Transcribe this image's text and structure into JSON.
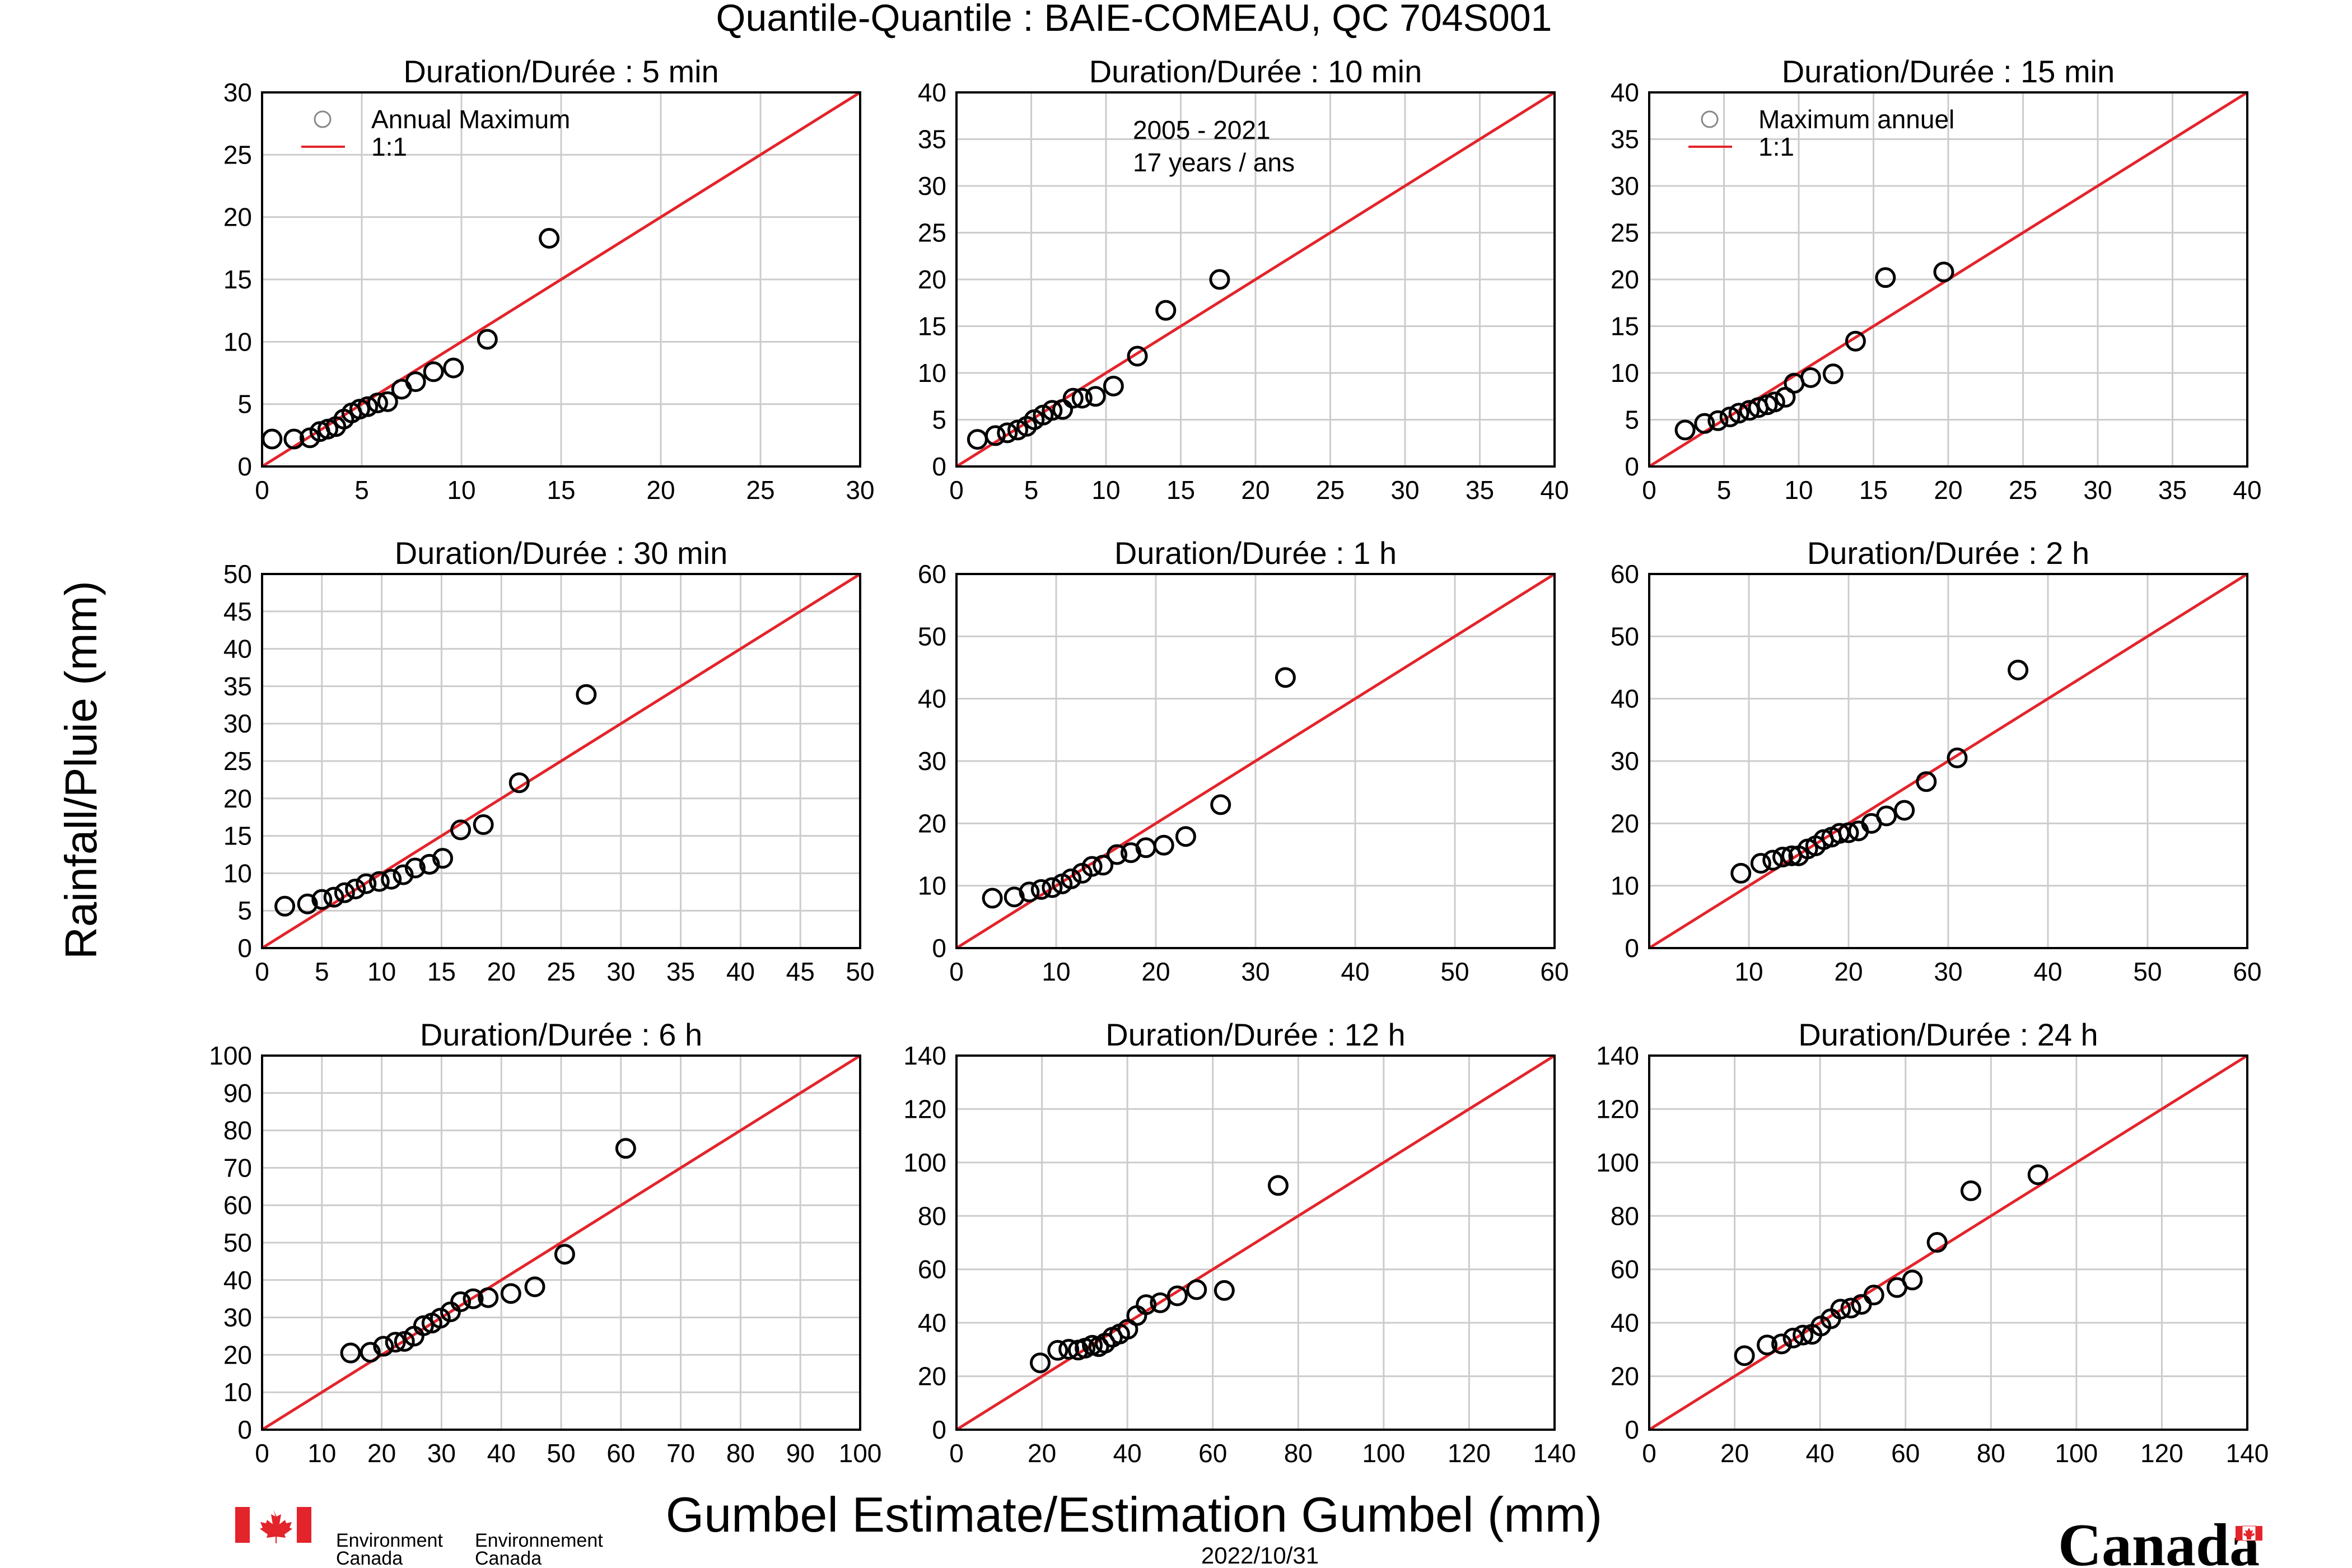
{
  "figure": {
    "title": "Quantile-Quantile : BAIE-COMEAU, QC  704S001",
    "ylabel": "Rainfall/Pluie (mm)",
    "xlabel": "Gumbel Estimate/Estimation Gumbel (mm)",
    "date": "2022/10/31"
  },
  "branding": {
    "agency_en_1": "Environment",
    "agency_en_2": "Canada",
    "agency_fr_1": "Environnement",
    "agency_fr_2": "Canada",
    "wordmark": "Canada",
    "flag_color": "#e3242b"
  },
  "colors": {
    "line": "#e3242b",
    "marker": "#000000",
    "grid": "#cccccc"
  },
  "chart_data": [
    {
      "type": "scatter",
      "title": "Duration/Durée : 5 min",
      "xlim": [
        0,
        30
      ],
      "ylim": [
        0,
        30
      ],
      "xticks": [
        0,
        5,
        10,
        15,
        20,
        25,
        30
      ],
      "yticks": [
        0,
        5,
        10,
        15,
        20,
        25,
        30
      ],
      "legend": {
        "marker_label": "Annual Maximum",
        "line_label": "1:1"
      },
      "annotation": null,
      "series": [
        {
          "name": "Annual Maximum",
          "x": [
            0.5,
            1.6,
            2.4,
            2.9,
            3.3,
            3.7,
            4.1,
            4.5,
            4.9,
            5.3,
            5.8,
            6.3,
            7.0,
            7.7,
            8.6,
            9.6,
            11.3,
            14.4
          ],
          "y": [
            2.2,
            2.2,
            2.3,
            2.8,
            3.0,
            3.2,
            3.8,
            4.3,
            4.6,
            4.8,
            5.1,
            5.2,
            6.2,
            6.8,
            7.6,
            7.9,
            10.2,
            18.3
          ]
        }
      ]
    },
    {
      "type": "scatter",
      "title": "Duration/Durée : 10 min",
      "xlim": [
        0,
        40
      ],
      "ylim": [
        0,
        40
      ],
      "xticks": [
        0,
        5,
        10,
        15,
        20,
        25,
        30,
        35,
        40
      ],
      "yticks": [
        0,
        5,
        10,
        15,
        20,
        25,
        30,
        35,
        40
      ],
      "legend": null,
      "annotation": [
        "2005 - 2021",
        "17 years / ans"
      ],
      "series": [
        {
          "name": "Annual Maximum",
          "x": [
            1.4,
            2.6,
            3.4,
            4.1,
            4.7,
            5.2,
            5.8,
            6.4,
            7.1,
            7.8,
            8.4,
            9.3,
            10.5,
            12.1,
            14.0,
            17.6
          ],
          "y": [
            2.9,
            3.3,
            3.6,
            3.9,
            4.3,
            5.0,
            5.5,
            6.0,
            6.1,
            7.3,
            7.3,
            7.5,
            8.6,
            11.8,
            16.7,
            20.0
          ]
        }
      ]
    },
    {
      "type": "scatter",
      "title": "Duration/Durée : 15 min",
      "xlim": [
        0,
        40
      ],
      "ylim": [
        0,
        40
      ],
      "xticks": [
        0,
        5,
        10,
        15,
        20,
        25,
        30,
        35,
        40
      ],
      "yticks": [
        0,
        5,
        10,
        15,
        20,
        25,
        30,
        35,
        40
      ],
      "legend": {
        "marker_label": "Maximum annuel",
        "line_label": "1:1"
      },
      "annotation": null,
      "series": [
        {
          "name": "Maximum annuel",
          "x": [
            2.4,
            3.7,
            4.6,
            5.4,
            6.0,
            6.7,
            7.3,
            7.9,
            8.4,
            9.1,
            9.7,
            10.8,
            12.3,
            13.8,
            15.8,
            19.7
          ],
          "y": [
            3.9,
            4.6,
            4.9,
            5.3,
            5.7,
            6.0,
            6.3,
            6.6,
            6.9,
            7.4,
            8.9,
            9.5,
            9.9,
            13.4,
            20.2,
            20.8
          ]
        }
      ]
    },
    {
      "type": "scatter",
      "title": "Duration/Durée : 30 min",
      "xlim": [
        0,
        50
      ],
      "ylim": [
        0,
        50
      ],
      "xticks": [
        0,
        5,
        10,
        15,
        20,
        25,
        30,
        35,
        40,
        45,
        50
      ],
      "yticks": [
        0,
        5,
        10,
        15,
        20,
        25,
        30,
        35,
        40,
        45,
        50
      ],
      "legend": null,
      "annotation": null,
      "series": [
        {
          "name": "Annual Maximum",
          "x": [
            1.9,
            3.8,
            5.0,
            6.0,
            6.9,
            7.8,
            8.7,
            9.8,
            10.8,
            11.8,
            12.8,
            14.0,
            15.1,
            16.6,
            18.5,
            21.5,
            27.1
          ],
          "y": [
            5.6,
            5.9,
            6.5,
            6.8,
            7.4,
            7.9,
            8.6,
            8.9,
            9.2,
            9.8,
            10.7,
            11.2,
            12.0,
            15.8,
            16.5,
            22.1,
            33.9
          ]
        }
      ]
    },
    {
      "type": "scatter",
      "title": "Duration/Durée : 1 h",
      "xlim": [
        0,
        60
      ],
      "ylim": [
        0,
        60
      ],
      "xticks": [
        0,
        10,
        20,
        30,
        40,
        50,
        60
      ],
      "yticks": [
        0,
        10,
        20,
        30,
        40,
        50,
        60
      ],
      "legend": null,
      "annotation": null,
      "series": [
        {
          "name": "Annual Maximum",
          "x": [
            3.6,
            5.8,
            7.3,
            8.5,
            9.6,
            10.6,
            11.5,
            12.6,
            13.6,
            14.7,
            16.1,
            17.5,
            19.0,
            20.8,
            23.0,
            26.5,
            33.0
          ],
          "y": [
            8.0,
            8.2,
            9.0,
            9.4,
            9.7,
            10.3,
            11.1,
            12.0,
            13.1,
            13.3,
            15.0,
            15.3,
            16.1,
            16.5,
            17.9,
            23.0,
            43.4
          ]
        }
      ]
    },
    {
      "type": "scatter",
      "title": "Duration/Durée : 2 h",
      "xlim": [
        0,
        60
      ],
      "ylim": [
        0,
        60
      ],
      "xticks": [
        10,
        20,
        30,
        40,
        50,
        60
      ],
      "yticks": [
        0,
        10,
        20,
        30,
        40,
        50,
        60
      ],
      "legend": null,
      "annotation": null,
      "series": [
        {
          "name": "Annual Maximum",
          "x": [
            9.2,
            11.2,
            12.4,
            13.4,
            14.3,
            15.0,
            15.9,
            16.7,
            17.5,
            18.3,
            19.1,
            20.0,
            21.0,
            22.3,
            23.8,
            25.6,
            27.8,
            30.9,
            37.0
          ],
          "y": [
            12.0,
            13.6,
            14.1,
            14.6,
            14.8,
            14.8,
            15.9,
            16.4,
            17.4,
            17.8,
            18.4,
            18.5,
            18.8,
            20.0,
            21.2,
            22.1,
            26.7,
            30.5,
            44.6
          ]
        }
      ]
    },
    {
      "type": "scatter",
      "title": "Duration/Durée : 6 h",
      "xlim": [
        0,
        100
      ],
      "ylim": [
        0,
        100
      ],
      "xticks": [
        0,
        10,
        20,
        30,
        40,
        50,
        60,
        70,
        80,
        90,
        100
      ],
      "yticks": [
        0,
        10,
        20,
        30,
        40,
        50,
        60,
        70,
        80,
        90,
        100
      ],
      "legend": null,
      "annotation": null,
      "series": [
        {
          "name": "Annual Maximum",
          "x": [
            14.8,
            18.1,
            20.3,
            22.3,
            23.8,
            25.4,
            27.0,
            28.4,
            29.8,
            31.5,
            33.2,
            35.3,
            37.8,
            41.6,
            45.6,
            50.6,
            60.8
          ],
          "y": [
            20.5,
            20.7,
            22.3,
            23.4,
            23.6,
            25.0,
            27.8,
            28.5,
            29.8,
            31.5,
            34.2,
            35.0,
            35.3,
            36.4,
            38.2,
            46.9,
            75.2
          ]
        }
      ]
    },
    {
      "type": "scatter",
      "title": "Duration/Durée : 12 h",
      "xlim": [
        0,
        140
      ],
      "ylim": [
        0,
        140
      ],
      "xticks": [
        0,
        20,
        40,
        60,
        80,
        100,
        120,
        140
      ],
      "yticks": [
        0,
        20,
        40,
        60,
        80,
        100,
        120,
        140
      ],
      "legend": null,
      "annotation": null,
      "series": [
        {
          "name": "Annual Maximum",
          "x": [
            19.6,
            23.7,
            26.3,
            28.5,
            30.1,
            31.8,
            33.3,
            34.8,
            36.5,
            38.2,
            40.1,
            42.2,
            44.4,
            47.7,
            51.7,
            56.2,
            62.7,
            75.3
          ],
          "y": [
            25.0,
            29.7,
            30.1,
            29.8,
            30.5,
            31.6,
            31.1,
            32.4,
            34.6,
            35.8,
            37.6,
            42.7,
            46.8,
            47.5,
            50.1,
            52.4,
            52.1,
            91.4
          ]
        }
      ]
    },
    {
      "type": "scatter",
      "title": "Duration/Durée : 24 h",
      "xlim": [
        0,
        140
      ],
      "ylim": [
        0,
        140
      ],
      "xticks": [
        0,
        20,
        40,
        60,
        80,
        100,
        120,
        140
      ],
      "yticks": [
        0,
        20,
        40,
        60,
        80,
        100,
        120,
        140
      ],
      "legend": null,
      "annotation": null,
      "series": [
        {
          "name": "Annual Maximum",
          "x": [
            22.3,
            27.6,
            31.0,
            33.7,
            36.0,
            38.1,
            40.2,
            42.5,
            44.8,
            47.2,
            49.7,
            52.6,
            58.0,
            61.6,
            67.4,
            75.3,
            91.0
          ],
          "y": [
            27.7,
            31.7,
            32.1,
            34.3,
            35.4,
            35.7,
            38.8,
            41.5,
            45.1,
            45.5,
            46.9,
            50.4,
            53.2,
            56.0,
            70.1,
            89.4,
            95.4
          ]
        }
      ]
    }
  ]
}
